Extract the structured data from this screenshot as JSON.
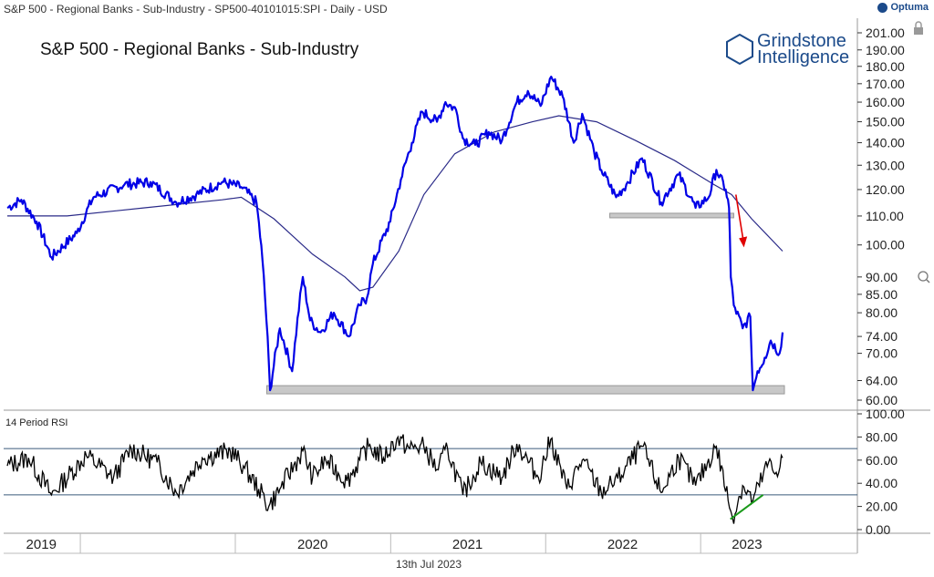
{
  "header": {
    "title": "S&P 500 - Regional Banks - Sub-Industry - SP500-40101015:SPI - Daily - USD",
    "brand": "Optuma"
  },
  "chart_title": "S&P 500 - Regional Banks - Sub-Industry",
  "logo": {
    "line1": "Grindstone",
    "line2": "Intelligence"
  },
  "rsi_label": "14 Period RSI",
  "footer_date": "13th Jul 2023",
  "colors": {
    "price": "#0000e6",
    "ma": "#2a2a88",
    "rsi": "#000000",
    "arrow": "#e00000",
    "support": "#c8c8c8",
    "divergence": "#1a9a1a"
  },
  "chart_data": [
    {
      "type": "line",
      "title": "S&P 500 - Regional Banks - Sub-Industry",
      "x_axis_labels": [
        "2019",
        "2020",
        "2021",
        "2022",
        "2023"
      ],
      "y_ticks": [
        201,
        190,
        180,
        170,
        160,
        150,
        140,
        130,
        120,
        110,
        100,
        90,
        85,
        80,
        74,
        70,
        64,
        60
      ],
      "y_tick_labels": [
        "201.00",
        "190.00",
        "180.00",
        "170.00",
        "160.00",
        "150.00",
        "140.00",
        "130.00",
        "120.00",
        "110.00",
        "100.00",
        "90.00",
        "85.00",
        "80.00",
        "74.00",
        "70.00",
        "64.00",
        "60.00"
      ],
      "scale": "log",
      "series": [
        {
          "role": "price",
          "points": [
            [
              "2018-07-13",
              113
            ],
            [
              "2018-08-15",
              116
            ],
            [
              "2018-09-20",
              108
            ],
            [
              "2018-10-25",
              96
            ],
            [
              "2018-12-24",
              104
            ],
            [
              "2019-02-01",
              117
            ],
            [
              "2019-04-15",
              122
            ],
            [
              "2019-06-15",
              123
            ],
            [
              "2019-08-15",
              115
            ],
            [
              "2019-10-01",
              118
            ],
            [
              "2019-12-01",
              123
            ],
            [
              "2020-01-15",
              121
            ],
            [
              "2020-02-20",
              115
            ],
            [
              "2020-03-05",
              95
            ],
            [
              "2020-03-23",
              62
            ],
            [
              "2020-04-15",
              76
            ],
            [
              "2020-05-14",
              66
            ],
            [
              "2020-06-08",
              90
            ],
            [
              "2020-06-25",
              78
            ],
            [
              "2020-07-20",
              75
            ],
            [
              "2020-08-20",
              80
            ],
            [
              "2020-09-25",
              74
            ],
            [
              "2020-10-20",
              82
            ],
            [
              "2020-11-06",
              84
            ],
            [
              "2020-11-20",
              94
            ],
            [
              "2020-12-31",
              108
            ],
            [
              "2021-01-25",
              124
            ],
            [
              "2021-02-20",
              140
            ],
            [
              "2021-03-16",
              155
            ],
            [
              "2021-04-20",
              150
            ],
            [
              "2021-05-10",
              160
            ],
            [
              "2021-06-04",
              156
            ],
            [
              "2021-06-20",
              142
            ],
            [
              "2021-07-19",
              139
            ],
            [
              "2021-08-20",
              145
            ],
            [
              "2021-09-20",
              141
            ],
            [
              "2021-10-25",
              160
            ],
            [
              "2021-11-20",
              166
            ],
            [
              "2021-12-20",
              158
            ],
            [
              "2022-01-14",
              174
            ],
            [
              "2022-02-10",
              163
            ],
            [
              "2022-03-08",
              140
            ],
            [
              "2022-03-28",
              154
            ],
            [
              "2022-04-25",
              136
            ],
            [
              "2022-05-12",
              128
            ],
            [
              "2022-06-16",
              117
            ],
            [
              "2022-07-10",
              122
            ],
            [
              "2022-08-16",
              133
            ],
            [
              "2022-09-30",
              115
            ],
            [
              "2022-11-10",
              126
            ],
            [
              "2022-12-20",
              113
            ],
            [
              "2023-01-20",
              117
            ],
            [
              "2023-02-07",
              128
            ],
            [
              "2023-03-01",
              120
            ],
            [
              "2023-03-09",
              113
            ],
            [
              "2023-03-13",
              90
            ],
            [
              "2023-03-20",
              82
            ],
            [
              "2023-04-10",
              76
            ],
            [
              "2023-04-28",
              79
            ],
            [
              "2023-05-04",
              62
            ],
            [
              "2023-05-15",
              66
            ],
            [
              "2023-06-01",
              69
            ],
            [
              "2023-06-15",
              73
            ],
            [
              "2023-07-06",
              70
            ],
            [
              "2023-07-13",
              75
            ]
          ]
        },
        {
          "role": "moving_average",
          "points": [
            [
              "2018-07-13",
              110
            ],
            [
              "2018-12-01",
              110
            ],
            [
              "2019-06-01",
              113
            ],
            [
              "2019-12-01",
              116
            ],
            [
              "2020-01-15",
              117
            ],
            [
              "2020-04-01",
              109
            ],
            [
              "2020-07-01",
              97
            ],
            [
              "2020-09-15",
              90
            ],
            [
              "2020-10-20",
              86
            ],
            [
              "2020-11-20",
              87
            ],
            [
              "2021-01-20",
              98
            ],
            [
              "2021-03-20",
              118
            ],
            [
              "2021-06-01",
              135
            ],
            [
              "2021-09-01",
              145
            ],
            [
              "2021-12-01",
              150
            ],
            [
              "2022-02-01",
              153
            ],
            [
              "2022-05-01",
              150
            ],
            [
              "2022-08-01",
              141
            ],
            [
              "2022-11-01",
              132
            ],
            [
              "2023-02-01",
              122
            ],
            [
              "2023-03-15",
              118
            ],
            [
              "2023-05-01",
              109
            ],
            [
              "2023-07-13",
              98
            ]
          ]
        }
      ]
    },
    {
      "type": "line",
      "title": "14 Period RSI",
      "y_ticks": [
        100,
        80,
        60,
        40,
        20,
        0
      ],
      "y_tick_labels": [
        "100.00",
        "80.00",
        "60.00",
        "40.00",
        "20.00",
        "0.00"
      ],
      "reference_lines": [
        70,
        30
      ],
      "series": [
        {
          "role": "rsi",
          "points": [
            [
              "2018-07-13",
              55
            ],
            [
              "2018-09-01",
              62
            ],
            [
              "2018-10-25",
              30
            ],
            [
              "2019-01-15",
              64
            ],
            [
              "2019-03-20",
              45
            ],
            [
              "2019-05-01",
              70
            ],
            [
              "2019-07-01",
              58
            ],
            [
              "2019-08-15",
              32
            ],
            [
              "2019-10-15",
              62
            ],
            [
              "2019-12-20",
              68
            ],
            [
              "2020-01-20",
              55
            ],
            [
              "2020-02-25",
              35
            ],
            [
              "2020-03-20",
              20
            ],
            [
              "2020-04-15",
              35
            ],
            [
              "2020-06-08",
              68
            ],
            [
              "2020-07-01",
              45
            ],
            [
              "2020-08-01",
              60
            ],
            [
              "2020-09-20",
              42
            ],
            [
              "2020-11-10",
              72
            ],
            [
              "2020-12-15",
              62
            ],
            [
              "2021-01-15",
              78
            ],
            [
              "2021-02-15",
              70
            ],
            [
              "2021-03-20",
              72
            ],
            [
              "2021-04-20",
              52
            ],
            [
              "2021-05-15",
              70
            ],
            [
              "2021-06-20",
              30
            ],
            [
              "2021-08-01",
              58
            ],
            [
              "2021-09-20",
              45
            ],
            [
              "2021-10-25",
              74
            ],
            [
              "2021-12-15",
              45
            ],
            [
              "2022-01-13",
              78
            ],
            [
              "2022-02-20",
              35
            ],
            [
              "2022-03-28",
              60
            ],
            [
              "2022-05-12",
              32
            ],
            [
              "2022-06-20",
              44
            ],
            [
              "2022-08-16",
              72
            ],
            [
              "2022-09-30",
              32
            ],
            [
              "2022-11-10",
              62
            ],
            [
              "2022-12-20",
              38
            ],
            [
              "2023-02-07",
              72
            ],
            [
              "2023-03-13",
              16
            ],
            [
              "2023-03-17",
              10
            ],
            [
              "2023-04-10",
              38
            ],
            [
              "2023-05-04",
              25
            ],
            [
              "2023-06-10",
              58
            ],
            [
              "2023-06-25",
              48
            ],
            [
              "2023-07-13",
              62
            ]
          ]
        }
      ]
    }
  ]
}
